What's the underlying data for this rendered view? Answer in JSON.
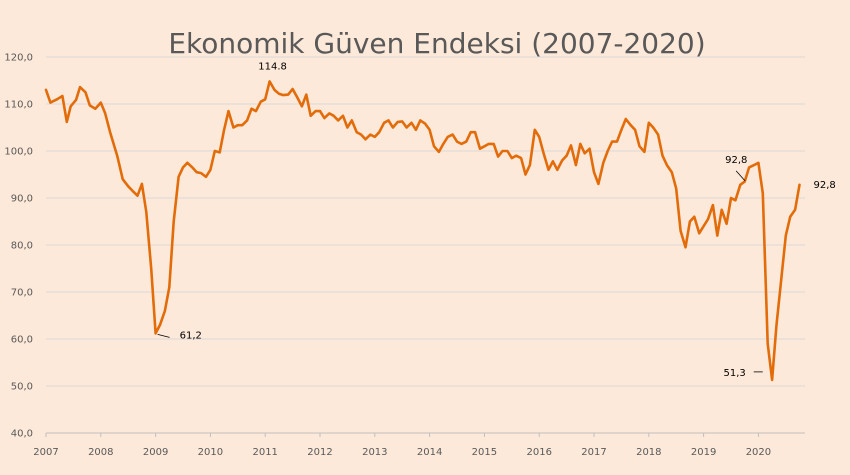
{
  "chart_data": {
    "type": "line",
    "title": "Ekonomik Güven Endeksi (2007-2020)",
    "xlabel": "",
    "ylabel": "",
    "ylim": [
      40,
      120
    ],
    "xlim": [
      2007,
      2020.85
    ],
    "y_ticks": [
      "40,0",
      "50,0",
      "60,0",
      "70,0",
      "80,0",
      "90,0",
      "100,0",
      "110,0",
      "120,0"
    ],
    "x_ticks": [
      "2007",
      "2008",
      "2009",
      "2010",
      "2011",
      "2012",
      "2013",
      "2014",
      "2015",
      "2016",
      "2017",
      "2018",
      "2019",
      "2020"
    ],
    "grid": "horizontal",
    "colors": {
      "line": "#e36c0a",
      "grid": "#d9d9d9",
      "background": "#fde9d9"
    },
    "series": [
      {
        "x": [
          2007.0,
          2007.08,
          2007.2,
          2007.3,
          2007.38,
          2007.45,
          2007.55,
          2007.62,
          2007.72,
          2007.8,
          2007.9,
          2008.0,
          2008.08,
          2008.17,
          2008.3,
          2008.4,
          2008.5,
          2008.58,
          2008.67,
          2008.75,
          2008.83,
          2008.92,
          2009.0,
          2009.08,
          2009.17,
          2009.25,
          2009.33,
          2009.42,
          2009.5,
          2009.58,
          2009.67,
          2009.75,
          2009.83,
          2009.92,
          2010.0,
          2010.08,
          2010.17,
          2010.25,
          2010.33,
          2010.42,
          2010.5,
          2010.58,
          2010.67,
          2010.75,
          2010.83,
          2010.92,
          2011.0,
          2011.08,
          2011.17,
          2011.25,
          2011.33,
          2011.42,
          2011.5,
          2011.58,
          2011.67,
          2011.75,
          2011.83,
          2011.92,
          2012.0,
          2012.08,
          2012.17,
          2012.25,
          2012.33,
          2012.42,
          2012.5,
          2012.58,
          2012.67,
          2012.75,
          2012.83,
          2012.92,
          2013.0,
          2013.08,
          2013.17,
          2013.25,
          2013.33,
          2013.42,
          2013.5,
          2013.58,
          2013.67,
          2013.75,
          2013.83,
          2013.92,
          2014.0,
          2014.08,
          2014.17,
          2014.25,
          2014.33,
          2014.42,
          2014.5,
          2014.58,
          2014.67,
          2014.75,
          2014.83,
          2014.92,
          2015.0,
          2015.08,
          2015.17,
          2015.25,
          2015.33,
          2015.42,
          2015.5,
          2015.58,
          2015.67,
          2015.75,
          2015.83,
          2015.92,
          2016.0,
          2016.08,
          2016.17,
          2016.25,
          2016.33,
          2016.42,
          2016.5,
          2016.58,
          2016.67,
          2016.75,
          2016.83,
          2016.92,
          2017.0,
          2017.08,
          2017.17,
          2017.25,
          2017.33,
          2017.42,
          2017.5,
          2017.58,
          2017.67,
          2017.75,
          2017.83,
          2017.92,
          2018.0,
          2018.08,
          2018.17,
          2018.25,
          2018.33,
          2018.42,
          2018.5,
          2018.58,
          2018.67,
          2018.75,
          2018.83,
          2018.92,
          2019.0,
          2019.08,
          2019.17,
          2019.25,
          2019.33,
          2019.42,
          2019.5,
          2019.58,
          2019.67,
          2019.75,
          2019.83,
          2019.92,
          2020.0,
          2020.08,
          2020.17,
          2020.25,
          2020.33,
          2020.42,
          2020.5,
          2020.58,
          2020.67,
          2020.75
        ],
        "values": [
          113.0,
          110.3,
          111.0,
          111.7,
          106.2,
          109.5,
          110.9,
          113.6,
          112.5,
          109.7,
          109.0,
          110.3,
          108.0,
          104.0,
          99.0,
          94.0,
          92.5,
          91.5,
          90.5,
          93.0,
          87.0,
          75.0,
          61.2,
          63.0,
          66.0,
          71.0,
          85.0,
          94.5,
          96.5,
          97.5,
          96.5,
          95.5,
          95.3,
          94.5,
          96.0,
          100.0,
          99.7,
          104.5,
          108.5,
          105.0,
          105.5,
          105.5,
          106.5,
          109.0,
          108.5,
          110.5,
          111.0,
          114.8,
          113.0,
          112.2,
          111.9,
          112.0,
          113.2,
          111.5,
          109.5,
          112.0,
          107.5,
          108.5,
          108.5,
          107.0,
          108.0,
          107.5,
          106.5,
          107.5,
          105.0,
          106.5,
          104.0,
          103.5,
          102.5,
          103.5,
          103.0,
          104.0,
          106.0,
          106.5,
          105.0,
          106.2,
          106.3,
          105.0,
          106.0,
          104.5,
          106.5,
          105.8,
          104.5,
          101.0,
          99.8,
          101.5,
          103.0,
          103.5,
          102.0,
          101.5,
          102.0,
          104.0,
          104.0,
          100.5,
          101.0,
          101.5,
          101.5,
          98.8,
          100.0,
          100.0,
          98.5,
          99.0,
          98.5,
          95.0,
          97.0,
          104.5,
          103.0,
          99.5,
          96.0,
          97.8,
          96.0,
          98.0,
          99.0,
          101.2,
          97.0,
          101.5,
          99.5,
          100.5,
          95.5,
          93.0,
          97.5,
          100.0,
          102.0,
          102.0,
          104.5,
          106.8,
          105.5,
          104.5,
          101.0,
          99.8,
          106.0,
          105.0,
          103.5,
          99.0,
          97.0,
          95.5,
          92.0,
          83.0,
          79.5,
          85.0,
          86.0,
          82.5,
          84.0,
          85.5,
          88.5,
          82.0,
          87.5,
          84.5,
          90.0,
          89.5,
          92.8,
          93.5,
          96.5,
          97.0,
          97.5,
          91.0,
          59.0,
          51.3,
          63.0,
          73.0,
          82.0,
          86.0,
          87.5,
          92.8
        ]
      }
    ],
    "annotations": [
      {
        "text": "61,2",
        "x": 2009.0,
        "y": 61.2
      },
      {
        "text": "114.8",
        "x": 2011.08,
        "y": 114.8
      },
      {
        "text": "92,8",
        "x": 2019.83,
        "y": 92.8
      },
      {
        "text": "51,3",
        "x": 2020.17,
        "y": 51.3
      },
      {
        "text": "92,8",
        "x": 2020.75,
        "y": 92.8
      }
    ]
  }
}
